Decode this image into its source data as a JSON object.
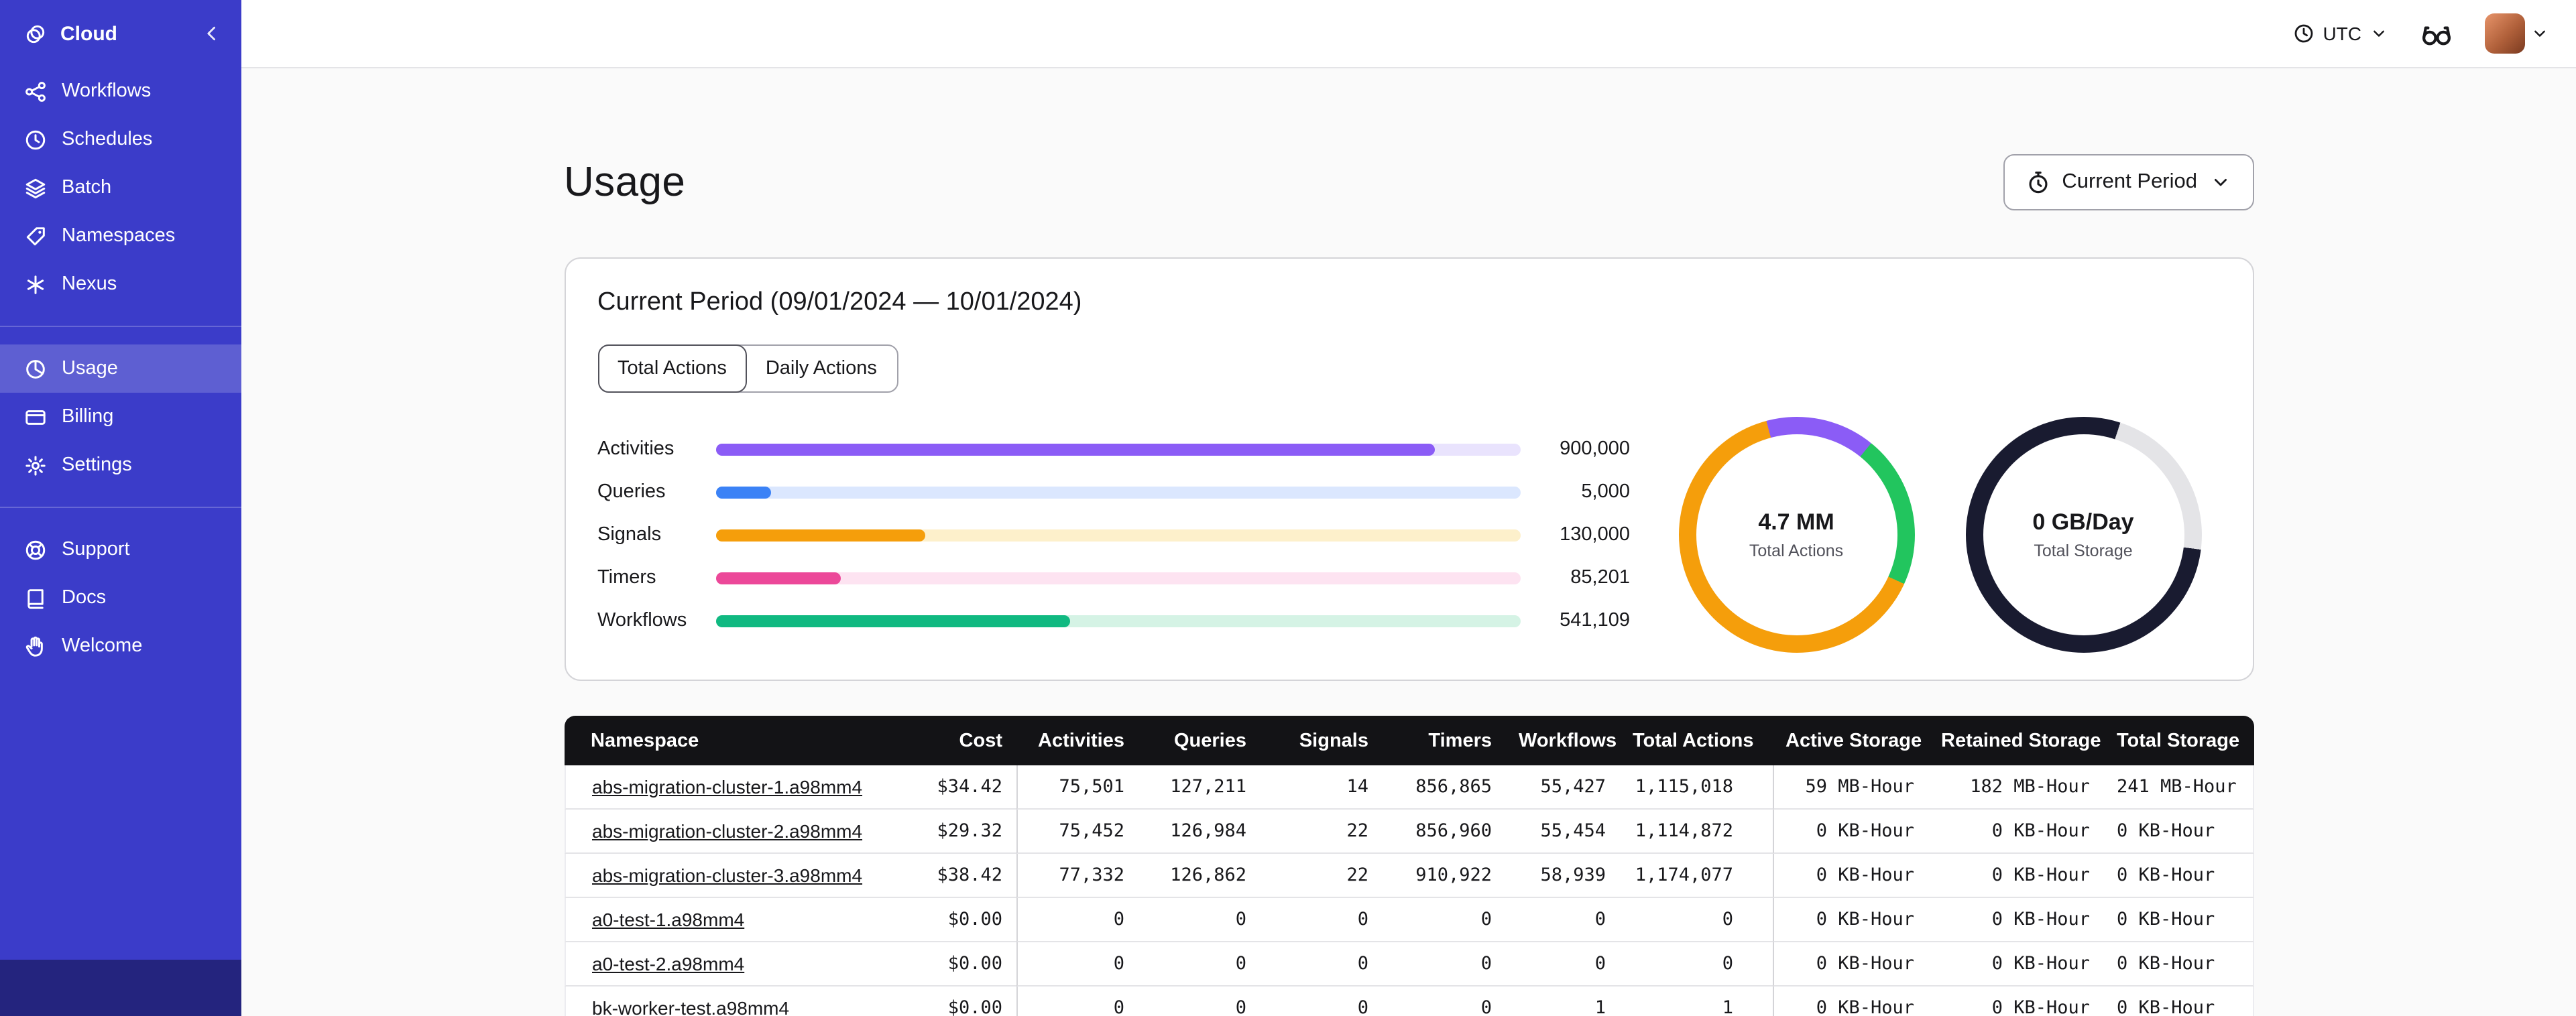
{
  "colors": {
    "sidebar_bg": "#3b3cc9",
    "sidebar_footer_bg": "#24247e",
    "table_header_bg": "#131316"
  },
  "sidebar": {
    "brand_label": "Cloud",
    "nav_primary": [
      {
        "label": "Workflows",
        "icon": "workflows-icon"
      },
      {
        "label": "Schedules",
        "icon": "schedules-icon"
      },
      {
        "label": "Batch",
        "icon": "batch-icon"
      },
      {
        "label": "Namespaces",
        "icon": "namespaces-icon"
      },
      {
        "label": "Nexus",
        "icon": "nexus-icon"
      }
    ],
    "nav_account": [
      {
        "label": "Usage",
        "icon": "usage-icon",
        "active": true
      },
      {
        "label": "Billing",
        "icon": "billing-icon"
      },
      {
        "label": "Settings",
        "icon": "settings-icon"
      }
    ],
    "nav_footer": [
      {
        "label": "Support",
        "icon": "support-icon"
      },
      {
        "label": "Docs",
        "icon": "docs-icon"
      },
      {
        "label": "Welcome",
        "icon": "welcome-icon"
      }
    ]
  },
  "topbar": {
    "timezone_label": "UTC"
  },
  "page": {
    "title": "Usage",
    "period_selector_label": "Current Period"
  },
  "usage_card": {
    "title": "Current Period (09/01/2024 — 10/01/2024)",
    "tabs": [
      {
        "label": "Total Actions",
        "active": true
      },
      {
        "label": "Daily Actions",
        "active": false
      }
    ]
  },
  "chart_data": [
    {
      "type": "bar",
      "orientation": "horizontal",
      "categories": [
        "Activities",
        "Queries",
        "Signals",
        "Timers",
        "Workflows"
      ],
      "values": [
        900000,
        5000,
        130000,
        85201,
        541109
      ],
      "value_labels": [
        "900,000",
        "5,000",
        "130,000",
        "85,201",
        "541,109"
      ],
      "fill_pct": [
        89.4,
        6.9,
        26.1,
        15.5,
        44.1
      ],
      "bar_colors": [
        "#8b5cf6",
        "#3b82f6",
        "#f59e0b",
        "#ec4899",
        "#10b981"
      ],
      "track_colors": [
        "#e9e3fd",
        "#dbe7fe",
        "#fdf0cb",
        "#fde3f1",
        "#d5f3e5"
      ]
    },
    {
      "type": "donut",
      "center_label": "4.7 MM",
      "center_sublabel": "Total Actions",
      "rotate_deg": -15,
      "segments": [
        {
          "color": "#8b5cf6",
          "pct": 15
        },
        {
          "color": "#22c55e",
          "pct": 21
        },
        {
          "color": "#f59e0b",
          "pct": 64
        }
      ]
    },
    {
      "type": "donut",
      "center_label": "0 GB/Day",
      "center_sublabel": "Total Storage",
      "rotate_deg": 18,
      "segments": [
        {
          "color": "#e4e4e7",
          "pct": 22
        },
        {
          "color": "#191b30",
          "pct": 78
        }
      ]
    }
  ],
  "table": {
    "columns": [
      {
        "label": "Namespace",
        "align": "left"
      },
      {
        "label": "Cost",
        "align": "right"
      },
      {
        "label": "Activities",
        "align": "right",
        "divider": true
      },
      {
        "label": "Queries",
        "align": "right"
      },
      {
        "label": "Signals",
        "align": "right"
      },
      {
        "label": "Timers",
        "align": "right"
      },
      {
        "label": "Workflows",
        "align": "right"
      },
      {
        "label": "Total Actions",
        "align": "right",
        "group_end": true
      },
      {
        "label": "Active Storage",
        "align": "right",
        "divider": true
      },
      {
        "label": "Retained Storage",
        "align": "right"
      },
      {
        "label": "Total Storage",
        "align": "right",
        "group_end": true
      }
    ],
    "rows": [
      {
        "namespace": "abs-migration-cluster-1.a98mm4",
        "cells": [
          "$34.42",
          "75,501",
          "127,211",
          "14",
          "856,865",
          "55,427",
          "1,115,018",
          "59 MB-Hour",
          "182 MB-Hour",
          "241 MB-Hour"
        ]
      },
      {
        "namespace": "abs-migration-cluster-2.a98mm4",
        "cells": [
          "$29.32",
          "75,452",
          "126,984",
          "22",
          "856,960",
          "55,454",
          "1,114,872",
          "0 KB-Hour",
          "0 KB-Hour",
          "0 KB-Hour"
        ]
      },
      {
        "namespace": "abs-migration-cluster-3.a98mm4",
        "cells": [
          "$38.42",
          "77,332",
          "126,862",
          "22",
          "910,922",
          "58,939",
          "1,174,077",
          "0 KB-Hour",
          "0 KB-Hour",
          "0 KB-Hour"
        ]
      },
      {
        "namespace": "a0-test-1.a98mm4",
        "cells": [
          "$0.00",
          "0",
          "0",
          "0",
          "0",
          "0",
          "0",
          "0 KB-Hour",
          "0 KB-Hour",
          "0 KB-Hour"
        ]
      },
      {
        "namespace": "a0-test-2.a98mm4",
        "cells": [
          "$0.00",
          "0",
          "0",
          "0",
          "0",
          "0",
          "0",
          "0 KB-Hour",
          "0 KB-Hour",
          "0 KB-Hour"
        ]
      },
      {
        "namespace": "bk-worker-test.a98mm4",
        "cells": [
          "$0.00",
          "0",
          "0",
          "0",
          "0",
          "1",
          "1",
          "0 KB-Hour",
          "0 KB-Hour",
          "0 KB-Hour"
        ]
      }
    ]
  }
}
